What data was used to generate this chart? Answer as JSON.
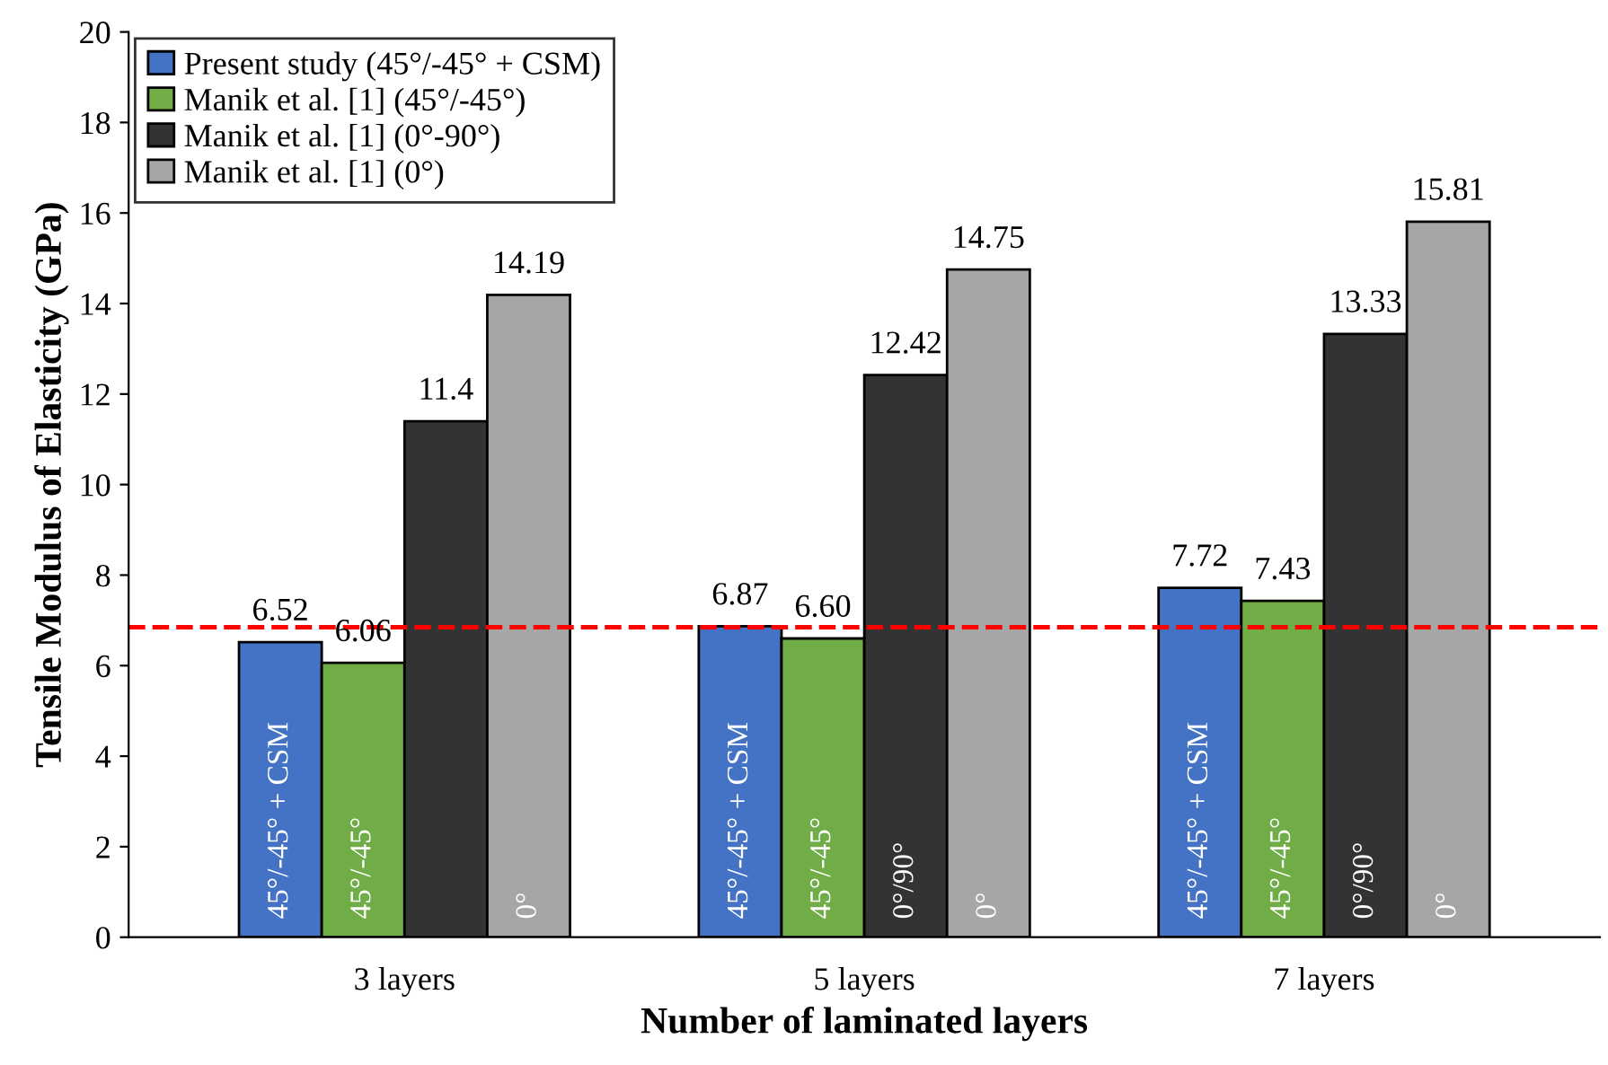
{
  "chart_data": {
    "type": "bar",
    "xlabel": "Number of laminated layers",
    "ylabel": "Tensile Modulus of Elasticity (GPa)",
    "categories": [
      "3 layers",
      "5 layers",
      "7 layers"
    ],
    "series": [
      {
        "name": "Present study (45°/-45° + CSM)",
        "color": "#4472c4",
        "values": [
          6.52,
          6.87,
          7.72
        ],
        "value_labels": [
          "6.52",
          "6.87",
          "7.72"
        ]
      },
      {
        "name": "Manik et al. [1] (45°/-45°)",
        "color": "#70ad47",
        "values": [
          6.06,
          6.6,
          7.43
        ],
        "value_labels": [
          "6.06",
          "6.60",
          "7.43"
        ]
      },
      {
        "name": "Manik et al. [1] (0°-90°)",
        "color": "#333333",
        "values": [
          11.4,
          12.42,
          13.33
        ],
        "value_labels": [
          "11.4",
          "12.42",
          "13.33"
        ]
      },
      {
        "name": "Manik et al. [1] (0°)",
        "color": "#a6a6a6",
        "values": [
          14.19,
          14.75,
          15.81
        ],
        "value_labels": [
          "14.19",
          "14.75",
          "15.81"
        ]
      }
    ],
    "annotations": [
      "45°/-45° + CSM",
      "45°/-45°",
      "0°",
      "45°/-45° + CSM",
      "45°/-45°",
      "0°/90°",
      "0°",
      "45°/-45° + CSM",
      "45°/-45°",
      "0°/90°",
      "0°"
    ],
    "ref_lines": [
      {
        "axis": "y",
        "value": 6.85,
        "color": "#ff0000",
        "line_style": "dashed"
      }
    ],
    "ylim": [
      0,
      20
    ],
    "yticks": [
      0,
      2,
      4,
      6,
      8,
      10,
      12,
      14,
      16,
      18,
      20
    ],
    "legend": "top left",
    "grid": false
  }
}
